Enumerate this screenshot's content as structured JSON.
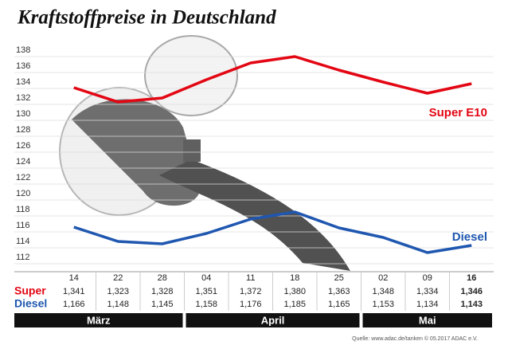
{
  "chart_data": {
    "type": "line",
    "title": "Kraftstoffpreise in Deutschland",
    "categories": [
      "14",
      "22",
      "28",
      "04",
      "11",
      "18",
      "25",
      "02",
      "09",
      "16"
    ],
    "x_groups": [
      {
        "label": "März",
        "span": 3
      },
      {
        "label": "April",
        "span": 4
      },
      {
        "label": "Mai",
        "span": 3
      }
    ],
    "series": [
      {
        "name": "Super E10",
        "row_label": "Super",
        "color": "#e30613",
        "values": [
          134.1,
          132.3,
          132.8,
          135.1,
          137.2,
          138.0,
          136.3,
          134.8,
          133.4,
          134.6
        ],
        "value_labels": [
          "1,341",
          "1,323",
          "1,328",
          "1,351",
          "1,372",
          "1,380",
          "1,363",
          "1,348",
          "1,334",
          "1,346"
        ]
      },
      {
        "name": "Diesel",
        "row_label": "Diesel",
        "color": "#1f57b0",
        "values": [
          116.6,
          114.8,
          114.5,
          115.8,
          117.6,
          118.5,
          116.5,
          115.3,
          113.4,
          114.3
        ],
        "value_labels": [
          "1,166",
          "1,148",
          "1,145",
          "1,158",
          "1,176",
          "1,185",
          "1,165",
          "1,153",
          "1,134",
          "1,143"
        ]
      }
    ],
    "ylim": [
      111,
      139
    ],
    "yticks": [
      112,
      114,
      116,
      118,
      120,
      122,
      124,
      126,
      128,
      130,
      132,
      134,
      136,
      138
    ],
    "grid": true,
    "source": "Quelle: www.adac.de/tanken  © 05.2017  ADAC e.V."
  }
}
